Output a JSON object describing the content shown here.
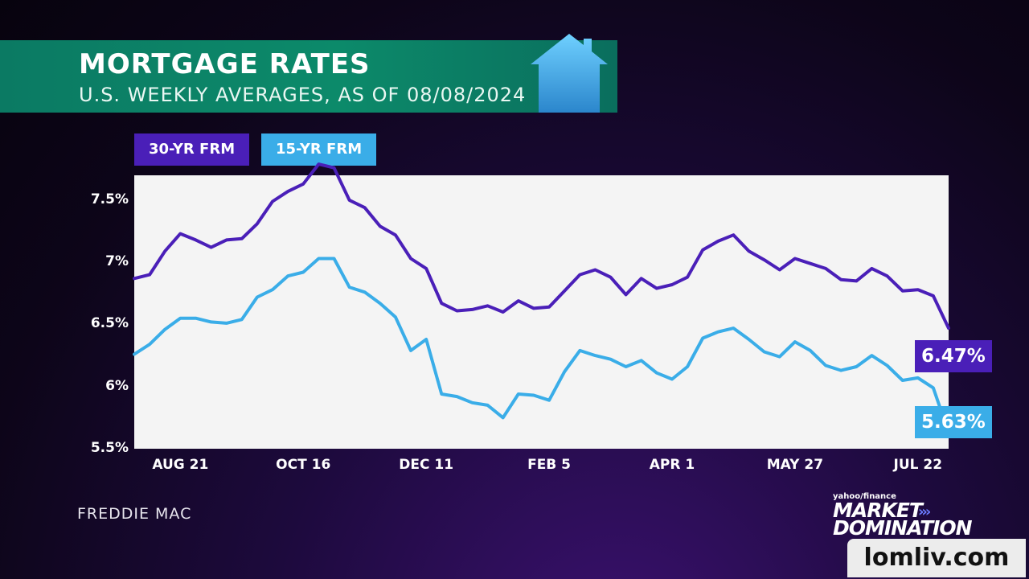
{
  "header": {
    "title": "MORTGAGE RATES",
    "subtitle": "U.S. WEEKLY AVERAGES, AS OF 08/08/2024",
    "icon": "house-icon"
  },
  "legend": [
    {
      "label": "30-YR FRM",
      "color": "#4a1fb8"
    },
    {
      "label": "15-YR FRM",
      "color": "#3aade8"
    }
  ],
  "end_labels": {
    "series_30": "6.47%",
    "series_15": "5.63%"
  },
  "source": "FREDDIE MAC",
  "brand": {
    "small": "yahoo/finance",
    "line1": "MARKET",
    "line2": "DOMINATION"
  },
  "watermark": "lomliv.com",
  "chart_data": {
    "type": "line",
    "title": "MORTGAGE RATES",
    "subtitle": "U.S. WEEKLY AVERAGES, AS OF 08/08/2024",
    "xlabel": "",
    "ylabel": "",
    "ylim": [
      5.5,
      7.7
    ],
    "xlim": [
      0,
      53
    ],
    "y_ticks": [
      {
        "value": 7.5,
        "label": "7.5%"
      },
      {
        "value": 7.0,
        "label": "7%"
      },
      {
        "value": 6.5,
        "label": "6.5%"
      },
      {
        "value": 6.0,
        "label": "6%"
      },
      {
        "value": 5.5,
        "label": "5.5%"
      }
    ],
    "x_ticks": [
      {
        "index": 3,
        "label": "AUG 21"
      },
      {
        "index": 11,
        "label": "OCT 16"
      },
      {
        "index": 19,
        "label": "DEC 11"
      },
      {
        "index": 27,
        "label": "FEB 5"
      },
      {
        "index": 35,
        "label": "APR 1"
      },
      {
        "index": 43,
        "label": "MAY 27"
      },
      {
        "index": 51,
        "label": "JUL 22"
      }
    ],
    "grid": false,
    "legend_position": "top-left",
    "series": [
      {
        "name": "30-YR FRM",
        "color": "#4a1fb8",
        "end_label": "6.47%",
        "values": [
          6.87,
          6.9,
          7.09,
          7.23,
          7.18,
          7.12,
          7.18,
          7.19,
          7.31,
          7.49,
          7.57,
          7.63,
          7.79,
          7.76,
          7.5,
          7.44,
          7.29,
          7.22,
          7.03,
          6.95,
          6.67,
          6.61,
          6.62,
          6.65,
          6.6,
          6.69,
          6.63,
          6.64,
          6.77,
          6.9,
          6.94,
          6.88,
          6.74,
          6.87,
          6.79,
          6.82,
          6.88,
          7.1,
          7.17,
          7.22,
          7.09,
          7.02,
          6.94,
          7.03,
          6.99,
          6.95,
          6.86,
          6.85,
          6.95,
          6.89,
          6.77,
          6.78,
          6.73,
          6.47
        ]
      },
      {
        "name": "15-YR FRM",
        "color": "#3aade8",
        "end_label": "5.63%",
        "values": [
          6.26,
          6.34,
          6.46,
          6.55,
          6.55,
          6.52,
          6.51,
          6.54,
          6.72,
          6.78,
          6.89,
          6.92,
          7.03,
          7.03,
          6.8,
          6.76,
          6.67,
          6.56,
          6.29,
          6.38,
          5.94,
          5.92,
          5.87,
          5.85,
          5.75,
          5.94,
          5.93,
          5.89,
          6.12,
          6.29,
          6.25,
          6.22,
          6.16,
          6.21,
          6.11,
          6.06,
          6.16,
          6.39,
          6.44,
          6.47,
          6.38,
          6.28,
          6.24,
          6.36,
          6.29,
          6.17,
          6.13,
          6.16,
          6.25,
          6.17,
          6.05,
          6.07,
          5.99,
          5.63
        ]
      }
    ]
  }
}
